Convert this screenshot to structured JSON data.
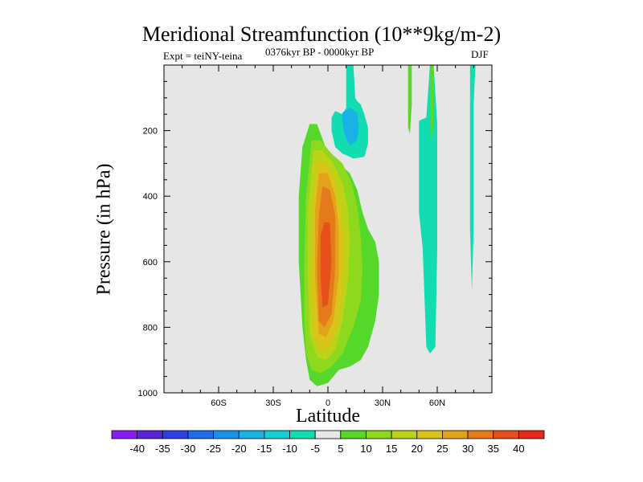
{
  "chart_data": {
    "type": "heatmap",
    "title": "Meridional Streamfunction (10**9kg/m-2)",
    "left_label": "Expt = teiNY-teina",
    "center_label": "0376kyr BP - 0000kyr BP",
    "right_label": "DJF",
    "xlabel": "Latitude",
    "ylabel": "Pressure (in hPa)",
    "xlim": [
      -90,
      90
    ],
    "ylim": [
      1000,
      0
    ],
    "x_ticks": [
      {
        "value": -60,
        "label": "60S"
      },
      {
        "value": -30,
        "label": "30S"
      },
      {
        "value": 0,
        "label": "0"
      },
      {
        "value": 30,
        "label": "30N"
      },
      {
        "value": 60,
        "label": "60N"
      }
    ],
    "y_ticks": [
      {
        "value": 200,
        "label": "200"
      },
      {
        "value": 400,
        "label": "400"
      },
      {
        "value": 600,
        "label": "600"
      },
      {
        "value": 800,
        "label": "800"
      },
      {
        "value": 1000,
        "label": "1000"
      }
    ],
    "background_color": "#e6e6e6",
    "colorbar": {
      "labels": [
        "-40",
        "-35",
        "-30",
        "-25",
        "-20",
        "-15",
        "-10",
        "-5",
        "5",
        "10",
        "15",
        "20",
        "25",
        "30",
        "35",
        "40"
      ],
      "colors": [
        "#8a1cf0",
        "#5a25d8",
        "#2f40e0",
        "#1f6ee8",
        "#1c92e8",
        "#18b2e6",
        "#14cfd5",
        "#12dcb2",
        "#e6e6e6",
        "#55d82a",
        "#8ed81e",
        "#bed21a",
        "#dcc31a",
        "#e2a21a",
        "#e47a1a",
        "#e6501a",
        "#e62a1a"
      ]
    },
    "contours": [
      {
        "value": 5,
        "color": "#55d82a",
        "lat": [
          -10,
          -6,
          0,
          6,
          12,
          16,
          19,
          22,
          26,
          28,
          28,
          26,
          22,
          18,
          12,
          6,
          0,
          -6,
          -10,
          -12,
          -14,
          -16,
          -16,
          -14
        ],
        "p": [
          180,
          180,
          270,
          300,
          330,
          380,
          450,
          500,
          540,
          600,
          700,
          780,
          860,
          900,
          920,
          930,
          970,
          980,
          960,
          900,
          800,
          600,
          400,
          250
        ]
      },
      {
        "value": 10,
        "color": "#8ed81e",
        "lat": [
          -9,
          -4,
          2,
          8,
          13,
          16,
          18,
          19,
          18,
          14,
          8,
          2,
          -4,
          -9,
          -12,
          -13,
          -13,
          -12
        ],
        "p": [
          230,
          230,
          270,
          300,
          360,
          430,
          520,
          620,
          720,
          800,
          880,
          920,
          940,
          930,
          880,
          760,
          600,
          400
        ]
      },
      {
        "value": 15,
        "color": "#bed21a",
        "lat": [
          -8,
          -3,
          3,
          8,
          11,
          12,
          11,
          8,
          4,
          -1,
          -6,
          -10,
          -11,
          -11
        ],
        "p": [
          260,
          260,
          300,
          360,
          440,
          540,
          660,
          780,
          870,
          900,
          890,
          820,
          650,
          450
        ]
      },
      {
        "value": 20,
        "color": "#dcc31a",
        "lat": [
          -6,
          -1,
          4,
          7,
          9,
          8,
          5,
          1,
          -4,
          -8,
          -9,
          -8
        ],
        "p": [
          300,
          300,
          360,
          440,
          540,
          680,
          800,
          860,
          870,
          820,
          650,
          420
        ]
      },
      {
        "value": 25,
        "color": "#e2a21a",
        "lat": [
          -5,
          0,
          4,
          6,
          6,
          3,
          -1,
          -5,
          -7,
          -7
        ],
        "p": [
          330,
          330,
          400,
          500,
          640,
          780,
          830,
          820,
          650,
          440
        ]
      },
      {
        "value": 30,
        "color": "#e47a1a",
        "lat": [
          -3,
          1,
          4,
          4,
          2,
          -2,
          -5,
          -6,
          -5
        ],
        "p": [
          370,
          380,
          460,
          620,
          760,
          800,
          780,
          620,
          460
        ]
      },
      {
        "value": 35,
        "color": "#e6501a",
        "lat": [
          -2,
          1,
          2,
          0,
          -3,
          -4,
          -4
        ],
        "p": [
          480,
          480,
          600,
          730,
          740,
          650,
          520
        ]
      },
      {
        "value": -5,
        "color": "#12dcb2",
        "lat": [
          10,
          12,
          14,
          15,
          16,
          16,
          18,
          20,
          22,
          22,
          20,
          14,
          8,
          4,
          2,
          2,
          4,
          8,
          10
        ],
        "p": [
          0,
          0,
          0,
          100,
          110,
          110,
          120,
          150,
          190,
          240,
          280,
          285,
          270,
          250,
          200,
          160,
          140,
          150,
          130
        ]
      },
      {
        "value": -10,
        "color": "#18b2e6",
        "lat": [
          8,
          12,
          16,
          17,
          16,
          12,
          9,
          8
        ],
        "p": [
          145,
          130,
          145,
          190,
          230,
          245,
          210,
          170
        ]
      },
      {
        "value": 5,
        "color": "#55d82a",
        "lat": [
          44,
          46,
          46,
          45,
          44
        ],
        "p": [
          0,
          0,
          120,
          210,
          190
        ]
      },
      {
        "value": -5,
        "color": "#12dcb2",
        "lat": [
          50,
          54,
          56,
          56,
          57,
          58,
          60,
          60,
          59,
          56,
          54,
          52,
          50,
          50
        ],
        "p": [
          170,
          160,
          0,
          0,
          0,
          0,
          180,
          560,
          860,
          880,
          860,
          560,
          450,
          300
        ]
      },
      {
        "value": -5,
        "color": "#12dcb2",
        "lat": [
          78,
          80,
          81,
          80,
          80,
          79,
          78,
          78
        ],
        "p": [
          0,
          0,
          0,
          120,
          500,
          690,
          500,
          200
        ]
      },
      {
        "value": 5,
        "color": "#55d82a",
        "lat": [
          56,
          58,
          58,
          57,
          56
        ],
        "p": [
          0,
          0,
          150,
          250,
          150
        ]
      }
    ]
  }
}
